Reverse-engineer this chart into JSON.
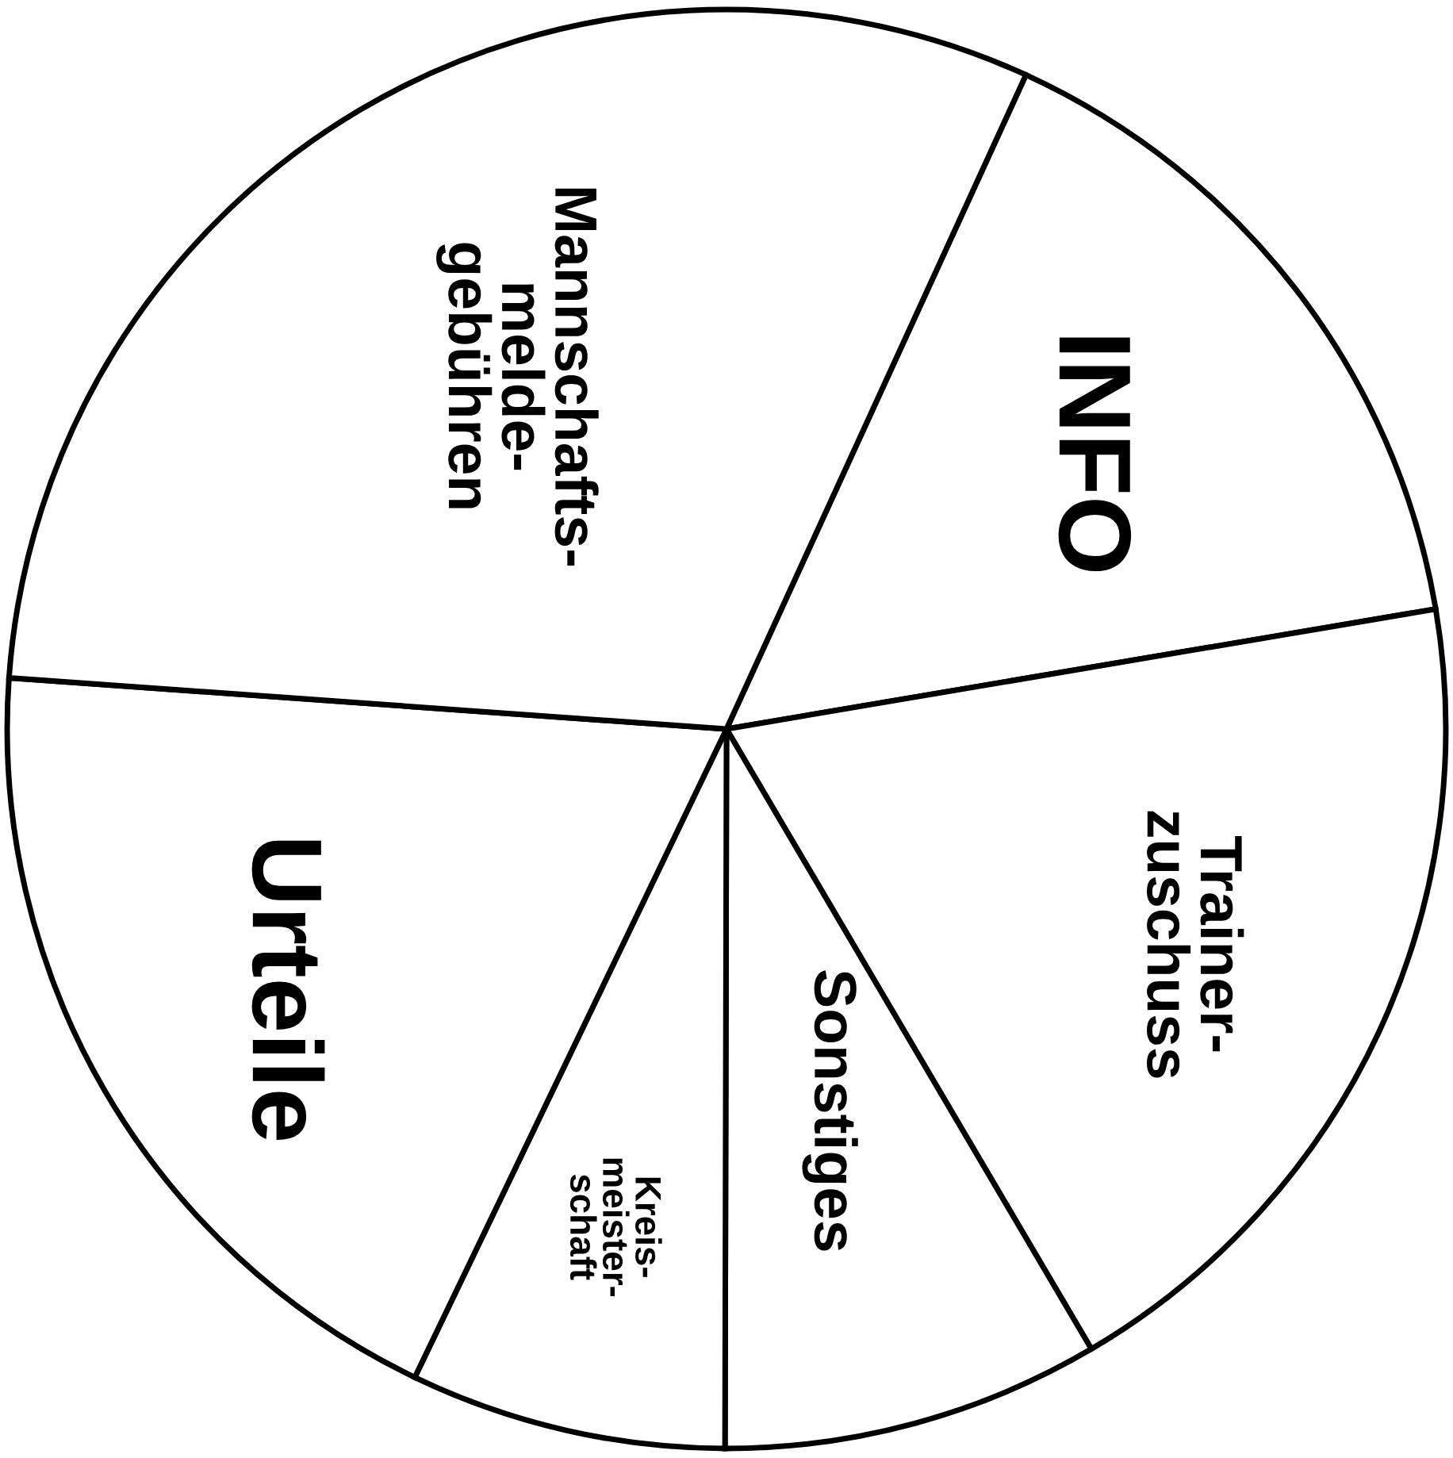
{
  "chart_data": {
    "type": "pie",
    "categories": [
      "INFO",
      "Trainer-\nzuschuss",
      "Sonstiges",
      "Kreis-\nmeister-\nschaft",
      "Urteile",
      "Mannschafts-\nmelde-\ngebühren"
    ],
    "values": [
      15.5,
      19.2,
      8.5,
      7.1,
      19.0,
      30.7
    ],
    "colors": [
      "#ffffff",
      "#ffffff",
      "#ffffff",
      "#ffffff",
      "#ffffff",
      "#ffffff"
    ],
    "legend": false
  }
}
